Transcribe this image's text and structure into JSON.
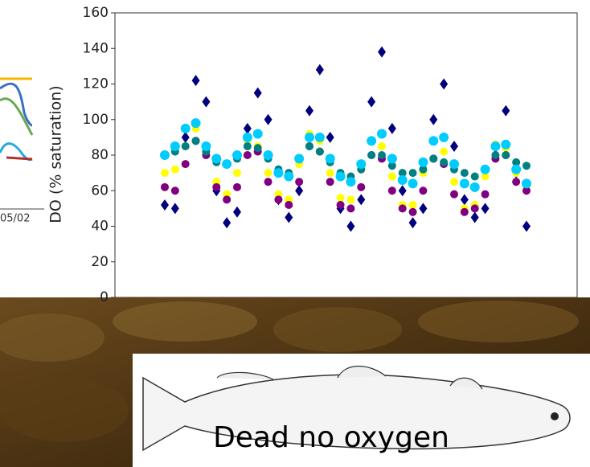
{
  "fragment_label": "05/02",
  "caption": "Dead no oxygen",
  "chart_data": {
    "type": "scatter",
    "ylabel": "DO (% saturation)",
    "ylim": [
      0,
      160
    ],
    "yticks": [
      0,
      20,
      40,
      60,
      80,
      100,
      120,
      140,
      160
    ],
    "categories": [
      null,
      null,
      null,
      null,
      null,
      null,
      null,
      null,
      null,
      null,
      null,
      null,
      null,
      null,
      null,
      null,
      null,
      null,
      null,
      null,
      null,
      null,
      null,
      null,
      null,
      null,
      null,
      null,
      null,
      null,
      null,
      null,
      null,
      null,
      null,
      null
    ],
    "series": [
      {
        "color": "#00007f",
        "values": [
          52,
          50,
          90,
          122,
          110,
          60,
          42,
          48,
          95,
          115,
          100,
          55,
          45,
          60,
          105,
          128,
          90,
          50,
          40,
          55,
          110,
          138,
          95,
          60,
          42,
          50,
          100,
          120,
          85,
          55,
          45,
          50,
          80,
          105,
          70,
          40
        ]
      },
      {
        "color": "#ffff00",
        "values": [
          70,
          72,
          85,
          95,
          85,
          65,
          58,
          70,
          88,
          85,
          70,
          58,
          55,
          75,
          92,
          88,
          70,
          56,
          55,
          72,
          88,
          85,
          68,
          52,
          52,
          70,
          88,
          82,
          65,
          50,
          52,
          68,
          86,
          84,
          70,
          62
        ]
      },
      {
        "color": "#800080",
        "values": [
          62,
          60,
          75,
          88,
          80,
          62,
          55,
          62,
          80,
          82,
          65,
          55,
          52,
          65,
          85,
          82,
          65,
          52,
          50,
          62,
          80,
          78,
          60,
          50,
          48,
          60,
          78,
          75,
          58,
          48,
          50,
          58,
          78,
          80,
          65,
          60
        ]
      },
      {
        "color": "#008080",
        "values": [
          80,
          82,
          85,
          88,
          82,
          76,
          75,
          78,
          85,
          84,
          78,
          72,
          70,
          78,
          85,
          82,
          76,
          70,
          68,
          72,
          80,
          80,
          74,
          70,
          70,
          72,
          78,
          76,
          72,
          70,
          68,
          72,
          80,
          80,
          76,
          74
        ]
      },
      {
        "color": "#00ccff",
        "values": [
          80,
          85,
          95,
          98,
          85,
          78,
          75,
          80,
          90,
          92,
          80,
          70,
          68,
          78,
          90,
          90,
          78,
          68,
          65,
          75,
          88,
          92,
          78,
          66,
          64,
          76,
          88,
          90,
          75,
          64,
          62,
          72,
          85,
          86,
          72,
          64
        ]
      }
    ]
  }
}
